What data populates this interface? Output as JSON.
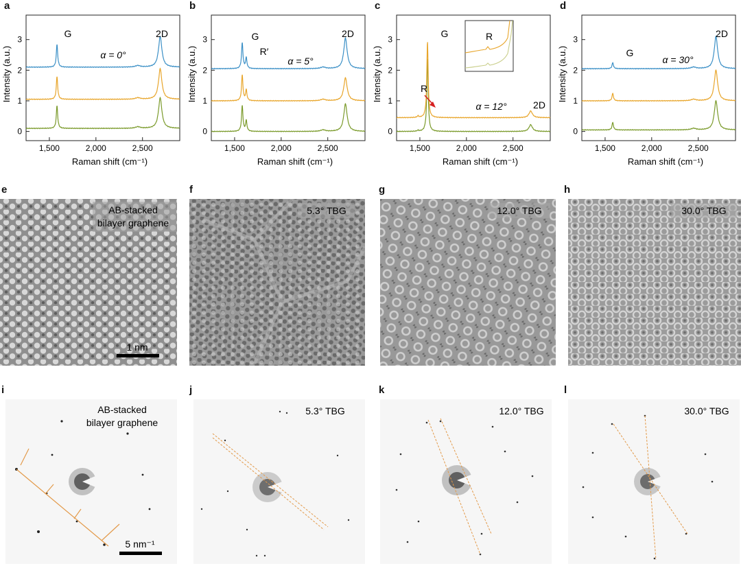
{
  "colors": {
    "blue": "#3a8fc6",
    "orange": "#e8a52a",
    "green": "#7a9a2a",
    "red_arrow": "#d62020",
    "dashed": "#e39a4a"
  },
  "panels": {
    "a": {
      "label": "a",
      "alpha": "α = 0°",
      "peaks": [
        "G",
        "2D"
      ]
    },
    "b": {
      "label": "b",
      "alpha": "α = 5°",
      "peaks": [
        "G",
        "R′",
        "2D"
      ]
    },
    "c": {
      "label": "c",
      "alpha": "α = 12°",
      "peaks": [
        "G",
        "R",
        "2D"
      ],
      "inset_label": "R"
    },
    "d": {
      "label": "d",
      "alpha": "α = 30°",
      "peaks": [
        "G",
        "2D"
      ]
    },
    "e": {
      "label": "e",
      "caption": [
        "AB-stacked",
        "bilayer graphene"
      ],
      "scalebar": "1 nm"
    },
    "f": {
      "label": "f",
      "caption": "5.3° TBG"
    },
    "g": {
      "label": "g",
      "caption": "12.0° TBG"
    },
    "h": {
      "label": "h",
      "caption": "30.0° TBG"
    },
    "i": {
      "label": "i",
      "caption": [
        "AB-stacked",
        "bilayer graphene"
      ],
      "scalebar": "5 nm⁻¹"
    },
    "j": {
      "label": "j",
      "caption": "5.3° TBG"
    },
    "k": {
      "label": "k",
      "caption": "12.0° TBG"
    },
    "l": {
      "label": "l",
      "caption": "30.0° TBG"
    }
  },
  "chart_data": [
    {
      "type": "line",
      "panel": "a",
      "xlabel": "Raman shift (cm⁻¹)",
      "ylabel": "Intensity (a.u.)",
      "xticks": [
        "1,500",
        "2,000",
        "2,500"
      ],
      "yticks": [
        "0",
        "1",
        "2",
        "3"
      ],
      "xlim": [
        1250,
        2900
      ],
      "ylim": [
        -0.3,
        3.8
      ],
      "series": [
        {
          "name": "blue",
          "offset": 2.1,
          "peaks": [
            [
              1582,
              0.75
            ],
            [
              2450,
              0.05
            ],
            [
              2690,
              1.0
            ]
          ]
        },
        {
          "name": "orange",
          "offset": 1.05,
          "peaks": [
            [
              1582,
              0.75
            ],
            [
              2450,
              0.05
            ],
            [
              2690,
              1.0
            ]
          ]
        },
        {
          "name": "green",
          "offset": 0.1,
          "peaks": [
            [
              1582,
              0.75
            ],
            [
              2450,
              0.05
            ],
            [
              2690,
              1.0
            ]
          ]
        }
      ]
    },
    {
      "type": "line",
      "panel": "b",
      "xlabel": "Raman shift (cm⁻¹)",
      "ylabel": "Intensity (a.u.)",
      "xticks": [
        "1,500",
        "2,000",
        "2,500"
      ],
      "yticks": [
        "0",
        "1",
        "2",
        "3"
      ],
      "xlim": [
        1250,
        2900
      ],
      "ylim": [
        -0.3,
        3.8
      ],
      "series": [
        {
          "name": "blue",
          "offset": 2.05,
          "peaks": [
            [
              1582,
              0.85
            ],
            [
              1625,
              0.35
            ],
            [
              2450,
              0.05
            ],
            [
              2690,
              1.0
            ]
          ]
        },
        {
          "name": "orange",
          "offset": 1.0,
          "peaks": [
            [
              1582,
              0.85
            ],
            [
              1625,
              0.35
            ],
            [
              2450,
              0.05
            ],
            [
              2690,
              0.75
            ]
          ]
        },
        {
          "name": "green",
          "offset": 0.0,
          "peaks": [
            [
              1582,
              0.85
            ],
            [
              1625,
              0.35
            ],
            [
              2450,
              0.05
            ],
            [
              2690,
              0.9
            ]
          ]
        }
      ]
    },
    {
      "type": "line",
      "panel": "c",
      "xlabel": "Raman shift (cm⁻¹)",
      "ylabel": "Intensity (a.u.)",
      "xticks": [
        "1,500",
        "2,000",
        "2,500"
      ],
      "yticks": [
        "0",
        "1",
        "2",
        "3"
      ],
      "xlim": [
        1250,
        2900
      ],
      "ylim": [
        -0.3,
        3.8
      ],
      "series": [
        {
          "name": "orange",
          "offset": 0.45,
          "peaks": [
            [
              1480,
              0.05
            ],
            [
              1582,
              2.5
            ],
            [
              2690,
              0.22
            ]
          ]
        },
        {
          "name": "green",
          "offset": 0.0,
          "peaks": [
            [
              1480,
              0.03
            ],
            [
              1582,
              2.4
            ],
            [
              2690,
              0.22
            ]
          ]
        }
      ]
    },
    {
      "type": "line",
      "panel": "d",
      "xlabel": "Raman shift (cm⁻¹)",
      "ylabel": "Intensity (a.u.)",
      "xticks": [
        "1,500",
        "2,000",
        "2,500"
      ],
      "yticks": [
        "0",
        "1",
        "2",
        "3"
      ],
      "xlim": [
        1250,
        2900
      ],
      "ylim": [
        -0.3,
        3.8
      ],
      "series": [
        {
          "name": "blue",
          "offset": 2.05,
          "peaks": [
            [
              1582,
              0.2
            ],
            [
              2450,
              0.05
            ],
            [
              2690,
              1.05
            ]
          ]
        },
        {
          "name": "orange",
          "offset": 1.0,
          "peaks": [
            [
              1582,
              0.25
            ],
            [
              2450,
              0.05
            ],
            [
              2690,
              1.0
            ]
          ]
        },
        {
          "name": "green",
          "offset": 0.05,
          "peaks": [
            [
              1582,
              0.25
            ],
            [
              2450,
              0.05
            ],
            [
              2690,
              0.95
            ]
          ]
        }
      ]
    }
  ]
}
